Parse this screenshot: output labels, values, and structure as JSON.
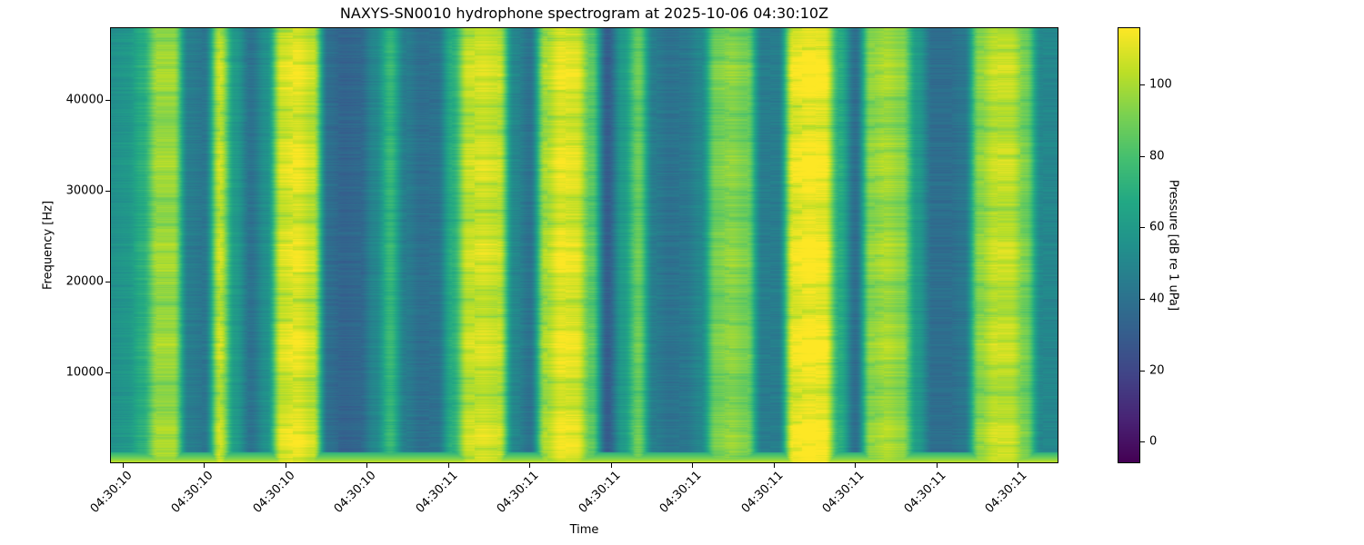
{
  "chart_data": {
    "type": "heatmap",
    "title": "NAXYS-SN0010 hydrophone spectrogram at 2025-10-06 04:30:10Z",
    "xlabel": "Time",
    "ylabel": "Frequency [Hz]",
    "x_tick_labels": [
      "04:30:10",
      "04:30:10",
      "04:30:10",
      "04:30:10",
      "04:30:11",
      "04:30:11",
      "04:30:11",
      "04:30:11",
      "04:30:11",
      "04:30:11",
      "04:30:11",
      "04:30:11"
    ],
    "y_ticks": [
      10000,
      20000,
      30000,
      40000
    ],
    "ylim": [
      0,
      48000
    ],
    "colormap": "viridis",
    "colorbar": {
      "label": "Pressure [dB re 1 uPa]",
      "ticks": [
        0,
        20,
        40,
        60,
        80,
        100
      ],
      "range": [
        -6,
        116
      ]
    },
    "time_profile_db": [
      55,
      58,
      70,
      98,
      98,
      45,
      42,
      105,
      60,
      40,
      55,
      108,
      112,
      105,
      38,
      33,
      35,
      50,
      75,
      45,
      38,
      40,
      70,
      105,
      108,
      105,
      50,
      40,
      100,
      112,
      110,
      85,
      30,
      60,
      88,
      45,
      40,
      42,
      50,
      90,
      95,
      90,
      45,
      45,
      112,
      116,
      114,
      70,
      38,
      95,
      100,
      95,
      60,
      38,
      38,
      42,
      95,
      105,
      105,
      90,
      50,
      50
    ]
  }
}
